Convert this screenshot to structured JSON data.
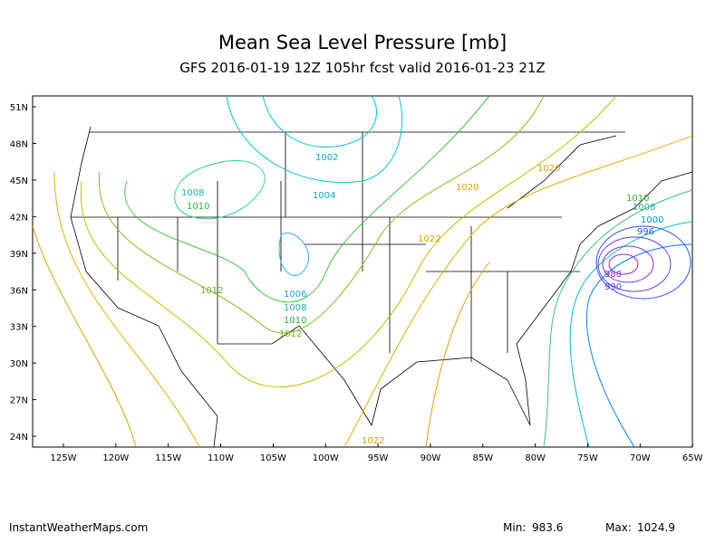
{
  "header": {
    "title": "Mean Sea Level Pressure [mb]",
    "subtitle": "GFS 2016-01-19 12Z 105hr fcst valid 2016-01-23 21Z"
  },
  "map": {
    "lat_labels": [
      "51N",
      "48N",
      "45N",
      "42N",
      "39N",
      "36N",
      "33N",
      "30N",
      "27N",
      "24N"
    ],
    "lon_labels": [
      "125W",
      "120W",
      "115W",
      "110W",
      "105W",
      "100W",
      "95W",
      "90W",
      "85W",
      "80W",
      "75W",
      "70W",
      "65W"
    ],
    "contour_labels": [
      "1002",
      "1004",
      "1008",
      "1010",
      "1012",
      "1006",
      "1008",
      "1010",
      "1012",
      "1020",
      "1020",
      "1022",
      "1022",
      "1010",
      "1008",
      "1000",
      "996",
      "988",
      "990"
    ]
  },
  "footer": {
    "site": "InstantWeatherMaps.com",
    "min_label": "Min:",
    "min": 983.6,
    "max_label": "Max:",
    "max": 1024.9
  }
}
